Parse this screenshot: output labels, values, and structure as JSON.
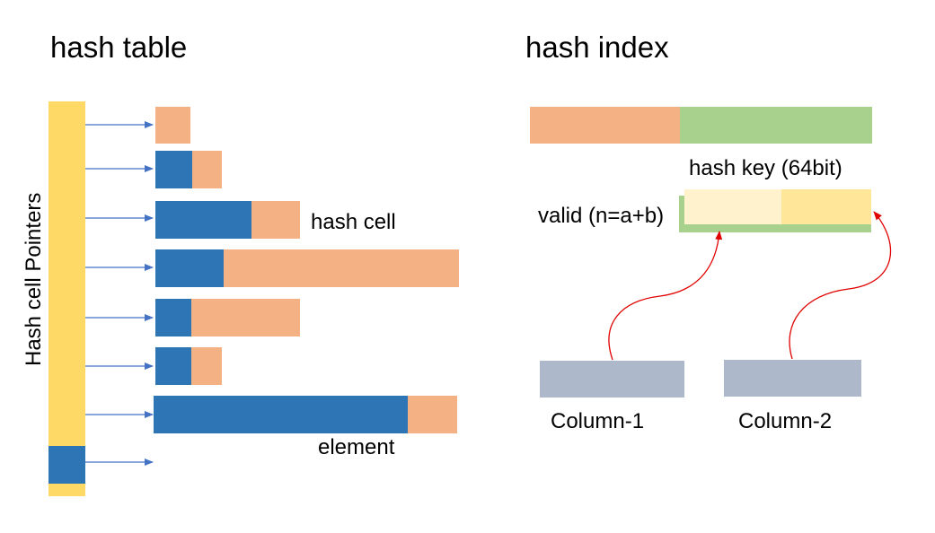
{
  "hash_table": {
    "title": "hash table",
    "pointer_column_label": "Hash cell Pointers",
    "hash_cell_label": "hash cell",
    "element_label": "element"
  },
  "hash_index": {
    "title": "hash index",
    "hash_key_label": "hash key (64bit)",
    "valid_label": "valid (n=a+b)",
    "column1_label": "Column-1",
    "column2_label": "Column-2"
  },
  "colors": {
    "pointer_column": "#FFD966",
    "element_blue": "#2E75B6",
    "cell_orange": "#F4B183",
    "key_green": "#A9D18E",
    "light_yellow": "#FFF2CC",
    "mid_yellow": "#FFE699",
    "column_gray": "#ADB9CA",
    "arrow_blue": "#4472C4",
    "arrow_red": "#E00000"
  }
}
